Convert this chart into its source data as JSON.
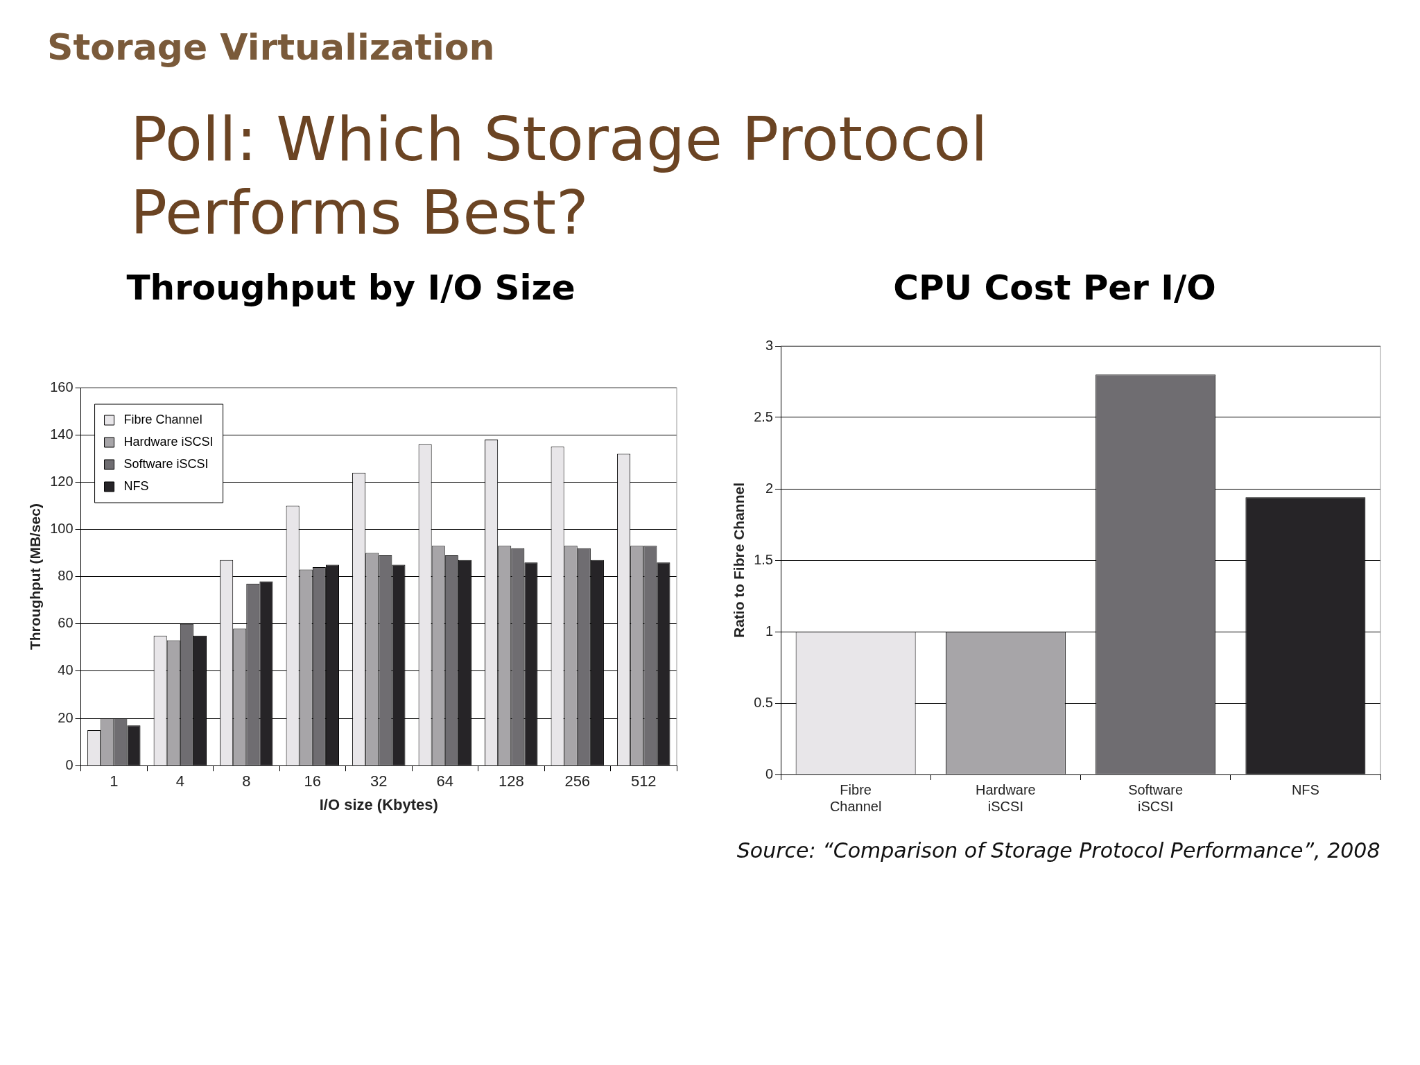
{
  "chart_data": [
    {
      "type": "other",
      "title": "Poll: Which Storage Protocol Performs Best?",
      "subtitle": "Storage Virtualization"
    },
    {
      "type": "bar",
      "title": "Throughput by I/O Size",
      "xlabel": "I/O size (Kbytes)",
      "ylabel": "Throughput (MB/sec)",
      "categories": [
        "1",
        "4",
        "8",
        "16",
        "32",
        "64",
        "128",
        "256",
        "512"
      ],
      "series": [
        {
          "name": "Fibre Channel",
          "color": "#e8e6e9",
          "values": [
            15,
            55,
            87,
            110,
            124,
            136,
            138,
            135,
            132
          ]
        },
        {
          "name": "Hardware iSCSI",
          "color": "#a7a5a8",
          "values": [
            20,
            53,
            58,
            83,
            90,
            93,
            93,
            93,
            93
          ]
        },
        {
          "name": "Software iSCSI",
          "color": "#6f6d71",
          "values": [
            20,
            60,
            77,
            84,
            89,
            89,
            92,
            92,
            93
          ]
        },
        {
          "name": "NFS",
          "color": "#262427",
          "values": [
            17,
            55,
            78,
            85,
            85,
            87,
            86,
            87,
            86
          ]
        }
      ],
      "ylim": [
        0,
        160
      ],
      "yticks": [
        0,
        20,
        40,
        60,
        80,
        100,
        120,
        140,
        160
      ],
      "grid": "y",
      "legend": "top left"
    },
    {
      "type": "bar",
      "title": "CPU Cost Per I/O",
      "ylabel": "Ratio to Fibre Channel",
      "categories": [
        "Fibre Channel",
        "Hardware iSCSI",
        "Software iSCSI",
        "NFS"
      ],
      "values": [
        1,
        1,
        2.8,
        1.94
      ],
      "colors": [
        "#e8e6e9",
        "#a7a5a8",
        "#6f6d71",
        "#262427"
      ],
      "ylim": [
        0,
        3
      ],
      "yticks": [
        0,
        0.5,
        1,
        1.5,
        2,
        2.5,
        3
      ],
      "grid": "y",
      "annotations": [
        "Source: “Comparison of Storage Protocol Performance”, 2008"
      ]
    }
  ]
}
